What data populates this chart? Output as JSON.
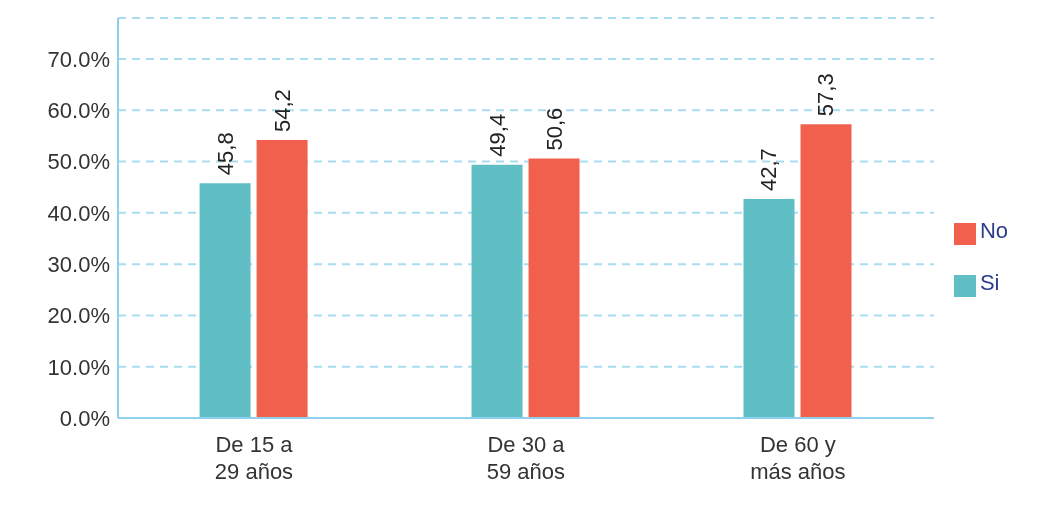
{
  "chart_data": {
    "type": "bar",
    "categories": [
      "De 15 a 29 años",
      "De 30 a 59 años",
      "De 60 y más años"
    ],
    "series": [
      {
        "name": "Si",
        "color": "#5fbfc4",
        "values": [
          45.8,
          49.4,
          42.7
        ],
        "value_labels": [
          "45,8",
          "49,4",
          "42,7"
        ]
      },
      {
        "name": "No",
        "color": "#f0604d",
        "values": [
          54.2,
          50.6,
          57.3
        ],
        "value_labels": [
          "54,2",
          "50,6",
          "57,3"
        ]
      }
    ],
    "ylim": [
      0,
      78
    ],
    "yticks": [
      {
        "value": 0,
        "label": "0.0%"
      },
      {
        "value": 10,
        "label": "10.0%"
      },
      {
        "value": 20,
        "label": "20.0%"
      },
      {
        "value": 30,
        "label": "30.0%"
      },
      {
        "value": 40,
        "label": "40.0%"
      },
      {
        "value": 50,
        "label": "50.0%"
      },
      {
        "value": 60,
        "label": "60.0%"
      },
      {
        "value": 70,
        "label": "70.0%"
      }
    ],
    "grid": "y",
    "legend": "right"
  }
}
